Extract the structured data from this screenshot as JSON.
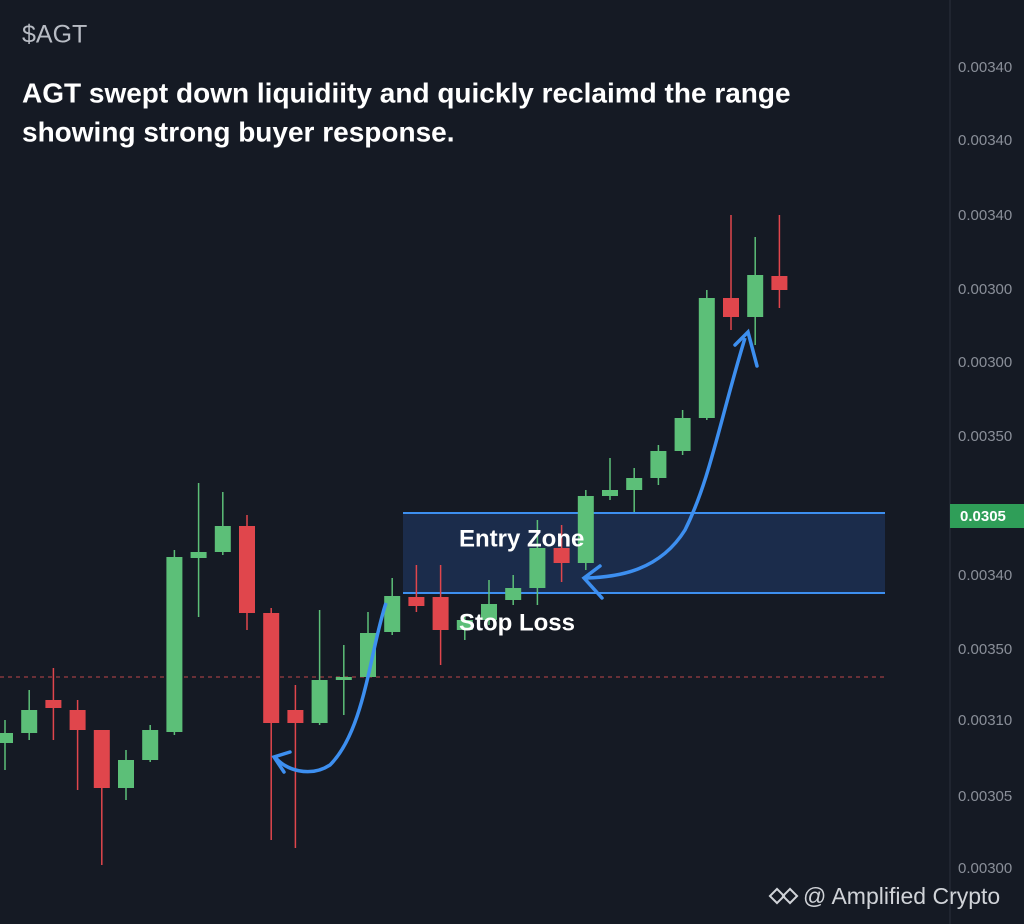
{
  "chart_data": {
    "type": "candlestick",
    "ticker": "$AGT",
    "title": "AGT swept down liquidiity and quickly reclaimd the range",
    "subtitle": "showing strong buyer response.",
    "zone_label": "Entry Zone",
    "stop_label": "Stop Loss",
    "watermark": "@ Amplified Crypto",
    "price_labels": [
      "0.00340",
      "0.00340",
      "0.00340",
      "0.00300",
      "0.00300",
      "0.00350",
      "0.00340",
      "0.00350",
      "0.00310",
      "0.00305",
      "0.00300"
    ],
    "last_price_label": "0.0305",
    "up_color": "#5cbf78",
    "down_color": "#e0464c",
    "ylim": [
      0,
      924
    ],
    "entry_zone": [
      331,
      411
    ],
    "reference_line": 247,
    "candles": [
      {
        "open": 181,
        "high": 204,
        "low": 154,
        "close": 191
      },
      {
        "open": 191,
        "high": 234,
        "low": 184,
        "close": 214
      },
      {
        "open": 224,
        "high": 256,
        "low": 184,
        "close": 216
      },
      {
        "open": 214,
        "high": 224,
        "low": 134,
        "close": 194
      },
      {
        "open": 194,
        "high": 194,
        "low": 59,
        "close": 136
      },
      {
        "open": 136,
        "high": 174,
        "low": 124,
        "close": 164
      },
      {
        "open": 164,
        "high": 199,
        "low": 162,
        "close": 194
      },
      {
        "open": 192,
        "high": 374,
        "low": 189,
        "close": 367
      },
      {
        "open": 366,
        "high": 441,
        "low": 307,
        "close": 372
      },
      {
        "open": 372,
        "high": 432,
        "low": 369,
        "close": 398
      },
      {
        "open": 398,
        "high": 409,
        "low": 294,
        "close": 311
      },
      {
        "open": 311,
        "high": 316,
        "low": 84,
        "close": 201
      },
      {
        "open": 214,
        "high": 239,
        "low": 76,
        "close": 201
      },
      {
        "open": 201,
        "high": 314,
        "low": 199,
        "close": 244
      },
      {
        "open": 244,
        "high": 279,
        "low": 209,
        "close": 247
      },
      {
        "open": 247,
        "high": 312,
        "low": 244,
        "close": 291
      },
      {
        "open": 292,
        "high": 346,
        "low": 289,
        "close": 328
      },
      {
        "open": 327,
        "high": 359,
        "low": 312,
        "close": 318
      },
      {
        "open": 327,
        "high": 359,
        "low": 259,
        "close": 294
      },
      {
        "open": 294,
        "high": 309,
        "low": 284,
        "close": 304
      },
      {
        "open": 304,
        "high": 344,
        "low": 299,
        "close": 320
      },
      {
        "open": 324,
        "high": 349,
        "low": 319,
        "close": 336
      },
      {
        "open": 336,
        "high": 404,
        "low": 319,
        "close": 376
      },
      {
        "open": 376,
        "high": 399,
        "low": 342,
        "close": 361
      },
      {
        "open": 361,
        "high": 434,
        "low": 354,
        "close": 428
      },
      {
        "open": 428,
        "high": 466,
        "low": 424,
        "close": 434
      },
      {
        "open": 434,
        "high": 456,
        "low": 412,
        "close": 446
      },
      {
        "open": 446,
        "high": 479,
        "low": 439,
        "close": 473
      },
      {
        "open": 473,
        "high": 514,
        "low": 469,
        "close": 506
      },
      {
        "open": 506,
        "high": 634,
        "low": 504,
        "close": 626
      },
      {
        "open": 626,
        "high": 709,
        "low": 594,
        "close": 607
      },
      {
        "open": 607,
        "high": 687,
        "low": 579,
        "close": 649
      },
      {
        "open": 648,
        "high": 709,
        "low": 616,
        "close": 634
      }
    ]
  }
}
